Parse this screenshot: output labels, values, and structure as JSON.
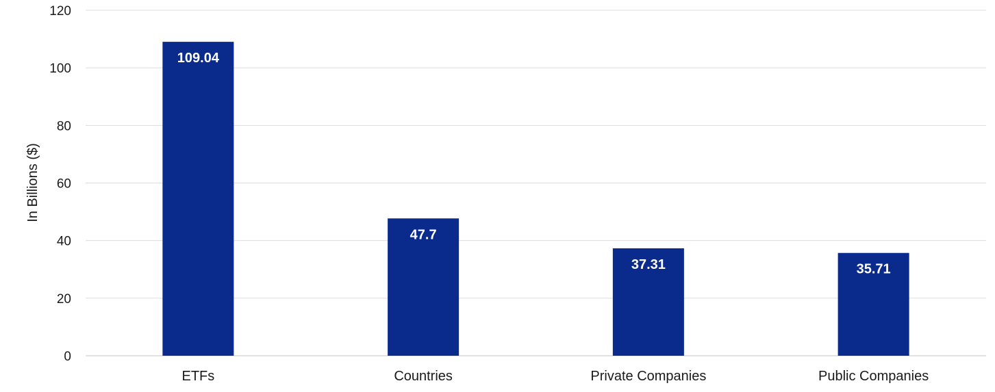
{
  "chart_data": {
    "type": "bar",
    "categories": [
      "ETFs",
      "Countries",
      "Private Companies",
      "Public Companies"
    ],
    "values": [
      109.04,
      47.7,
      37.31,
      35.71
    ],
    "value_labels": [
      "109.04",
      "47.7",
      "37.31",
      "35.71"
    ],
    "title": "",
    "xlabel": "",
    "ylabel": "In Billions ($)",
    "ylim": [
      0,
      120
    ],
    "yticks": [
      0,
      20,
      40,
      60,
      80,
      100,
      120
    ],
    "grid": true,
    "legend": "none",
    "colors": {
      "bar": "#0a2a8c",
      "data_label": "#ffffff",
      "text": "#1a1a1a",
      "grid": "#dcdcdc"
    }
  }
}
